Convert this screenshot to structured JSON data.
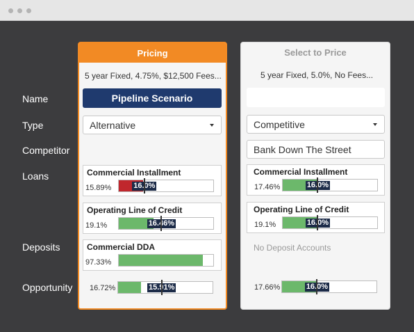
{
  "window": {
    "controls": [
      "dot",
      "dot",
      "dot"
    ]
  },
  "row_labels": {
    "name": "Name",
    "type": "Type",
    "competitor": "Competitor",
    "loans": "Loans",
    "deposits": "Deposits",
    "opportunity": "Opportunity"
  },
  "pricing_card": {
    "header": "Pricing",
    "summary": "5 year Fixed, 4.75%, $12,500 Fees...",
    "name": "Pipeline Scenario",
    "type": "Alternative",
    "loans": [
      {
        "title": "Commercial Installment",
        "value": "15.89%",
        "target": "16.0%",
        "fill_fraction": 0.26,
        "target_fraction": 0.27,
        "fill_color": "#c0272d"
      },
      {
        "title": "Operating Line of Credit",
        "value": "19.1%",
        "target": "16.46%",
        "fill_fraction": 0.37,
        "target_fraction": 0.45,
        "fill_color": "#6cb86b"
      }
    ],
    "deposits": [
      {
        "title": "Commercial DDA",
        "value": "97.33%",
        "fill_fraction": 0.89,
        "fill_color": "#6cb86b"
      }
    ],
    "opportunity": {
      "value": "16.72%",
      "target": "15.91%",
      "fill_fraction": 0.24,
      "target_fraction": 0.46,
      "fill_color": "#6cb86b"
    }
  },
  "compare_card": {
    "header": "Select to Price",
    "summary": "5 year Fixed, 5.0%, No Fees...",
    "name": "",
    "type": "Competitive",
    "competitor": "Bank Down The Street",
    "loans": [
      {
        "title": "Commercial Installment",
        "value": "17.46%",
        "target": "16.0%",
        "fill_fraction": 0.37,
        "target_fraction": 0.37,
        "fill_color": "#6cb86b"
      },
      {
        "title": "Operating Line of Credit",
        "value": "19.1%",
        "target": "16.0%",
        "fill_fraction": 0.37,
        "target_fraction": 0.37,
        "fill_color": "#6cb86b"
      }
    ],
    "deposits_empty": "No Deposit Accounts",
    "opportunity": {
      "value": "17.66%",
      "target": "16.0%",
      "fill_fraction": 0.37,
      "target_fraction": 0.37,
      "fill_color": "#6cb86b"
    }
  },
  "colors": {
    "accent": "#f28a24",
    "navy": "#1f3a6e",
    "danger": "#c0272d",
    "success": "#6cb86b",
    "label_bg": "#1c2b48"
  },
  "icons": {
    "dropdown": "chevron-down-icon"
  }
}
